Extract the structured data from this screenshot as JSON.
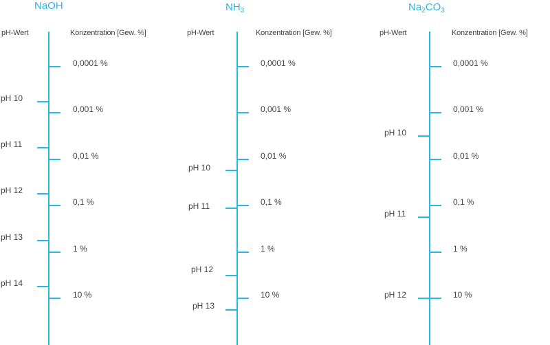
{
  "columns": [
    {
      "title": "NaOH",
      "title_parts": [
        "NaOH"
      ],
      "ph_header": "pH-Wert",
      "conc_header": "Konzentration [Gew. %]",
      "concentrations": [
        "0,0001 %",
        "0,001 %",
        "0,01 %",
        "0,1 %",
        "1 %",
        "10 %"
      ],
      "ph_marks": [
        "pH 10",
        "pH 11",
        "pH 12",
        "pH 13",
        "pH 14"
      ]
    },
    {
      "title": "NH 3",
      "ph_header": "pH-Wert",
      "conc_header": "Konzentration [Gew. %]",
      "concentrations": [
        "0,0001 %",
        "0,001 %",
        "0,01 %",
        "0,1 %",
        "1 %",
        "10 %"
      ],
      "ph_marks": [
        "pH 10",
        "pH 11",
        "pH 12",
        "pH 13"
      ]
    },
    {
      "title": "Na2CO3",
      "ph_header": "pH-Wert",
      "conc_header": "Konzentration [Gew. %]",
      "concentrations": [
        "0,0001 %",
        "0,001 %",
        "0,01 %",
        "0,1 %",
        "1 %",
        "10 %"
      ],
      "ph_marks": [
        "pH 10",
        "pH 11",
        "pH 12"
      ]
    }
  ],
  "colors": {
    "accent": "#29b6e8",
    "text": "#444444"
  }
}
